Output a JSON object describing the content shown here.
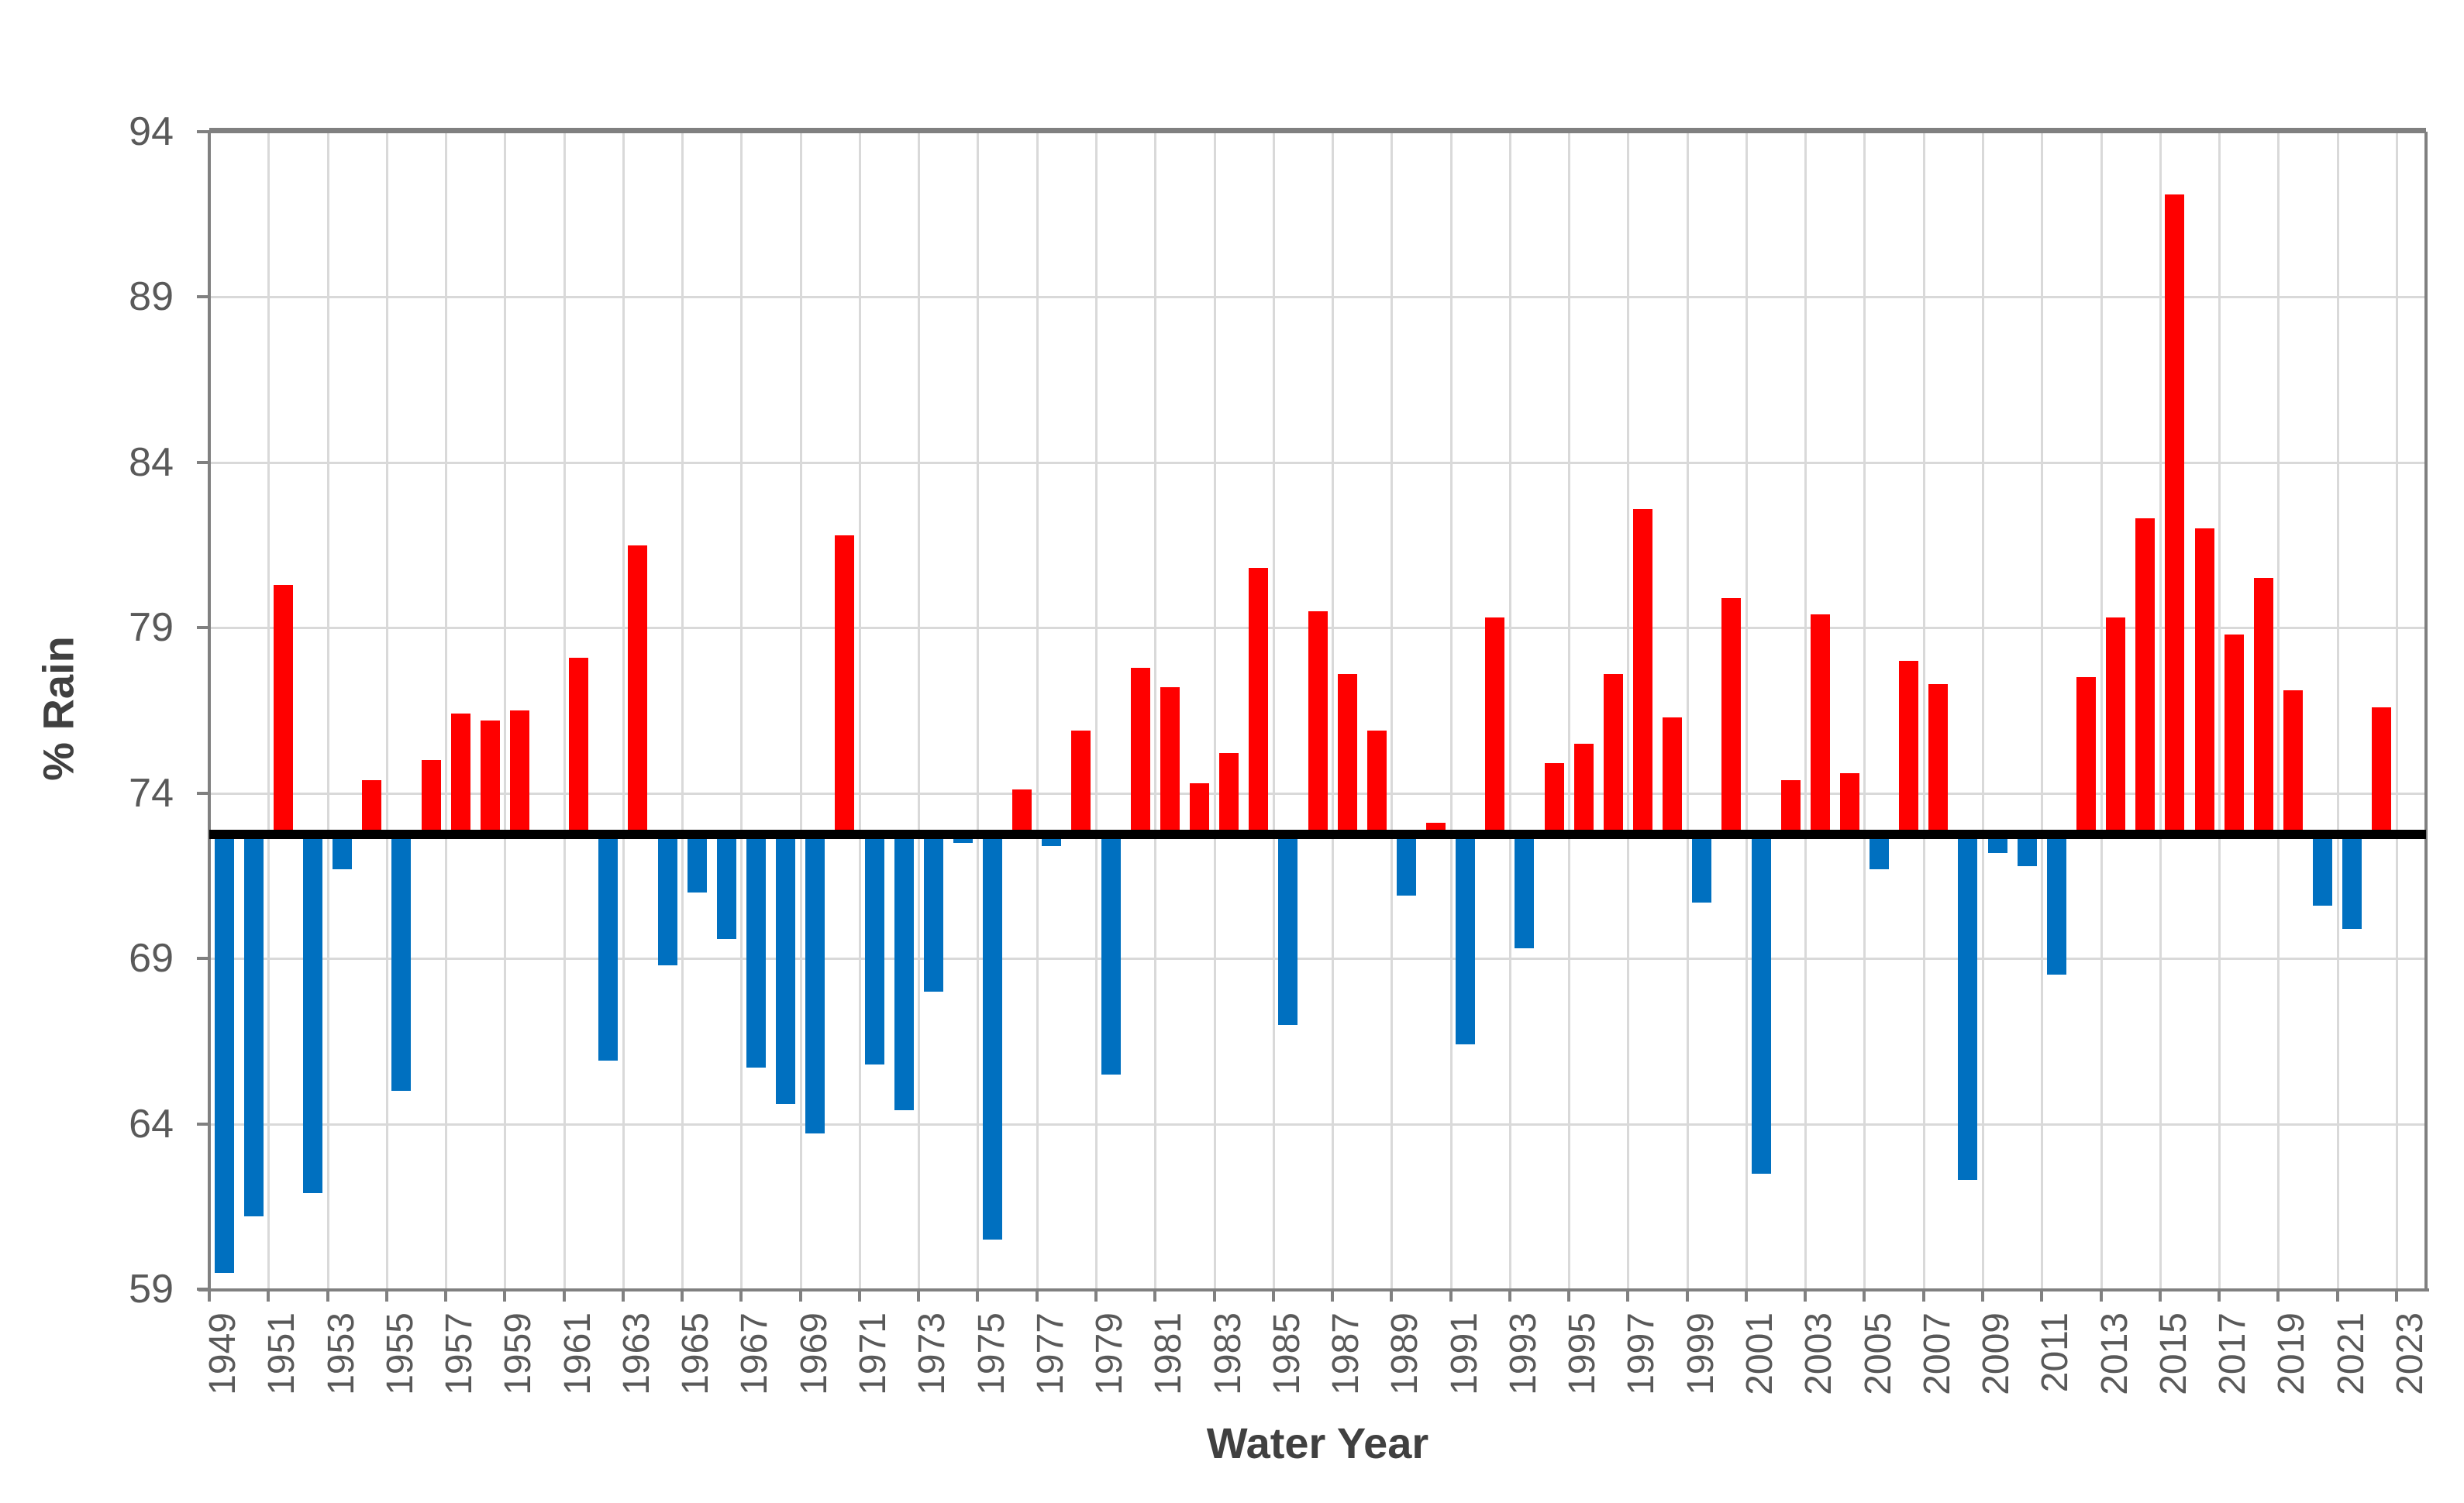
{
  "chart_data": {
    "type": "bar",
    "title": "",
    "xlabel": "Water Year",
    "ylabel": "% Rain",
    "ylim": [
      59,
      94
    ],
    "y_ticks": [
      94,
      89,
      84,
      79,
      74,
      69,
      64,
      59
    ],
    "grid": "on",
    "legend": "none",
    "reference_line": 72.9,
    "x": [
      1949,
      1950,
      1951,
      1952,
      1953,
      1954,
      1955,
      1956,
      1957,
      1958,
      1959,
      1960,
      1961,
      1962,
      1963,
      1964,
      1965,
      1966,
      1967,
      1968,
      1969,
      1970,
      1971,
      1972,
      1973,
      1974,
      1975,
      1976,
      1977,
      1978,
      1979,
      1980,
      1981,
      1982,
      1983,
      1984,
      1985,
      1986,
      1987,
      1988,
      1989,
      1990,
      1991,
      1992,
      1993,
      1994,
      1995,
      1996,
      1997,
      1998,
      1999,
      2000,
      2001,
      2002,
      2003,
      2004,
      2005,
      2006,
      2007,
      2008,
      2009,
      2010,
      2011,
      2012,
      2013,
      2014,
      2015,
      2016,
      2017,
      2018,
      2019,
      2020,
      2021,
      2022,
      2023
    ],
    "values": [
      59.5,
      61.2,
      80.3,
      61.9,
      71.7,
      74.4,
      65.0,
      75.0,
      76.4,
      76.2,
      76.5,
      72.9,
      78.1,
      65.9,
      81.5,
      68.8,
      71.0,
      69.6,
      65.7,
      64.6,
      63.7,
      81.8,
      65.8,
      64.4,
      68.0,
      72.5,
      60.5,
      74.1,
      72.4,
      75.9,
      65.5,
      77.8,
      77.2,
      74.3,
      75.2,
      80.8,
      67.0,
      79.5,
      77.6,
      75.9,
      70.9,
      73.1,
      66.4,
      79.3,
      69.3,
      74.9,
      75.5,
      77.6,
      82.6,
      76.3,
      70.7,
      79.9,
      62.5,
      74.4,
      79.4,
      74.6,
      71.7,
      78.0,
      77.3,
      62.3,
      72.2,
      71.8,
      68.5,
      77.5,
      79.3,
      82.3,
      92.1,
      82.0,
      78.8,
      80.5,
      77.1,
      70.6,
      69.9,
      76.6,
      72.9
    ],
    "x_tick_labels": [
      "1949",
      "1951",
      "1953",
      "1955",
      "1957",
      "1959",
      "1961",
      "1963",
      "1965",
      "1967",
      "1969",
      "1971",
      "1973",
      "1975",
      "1977",
      "1979",
      "1981",
      "1983",
      "1985",
      "1987",
      "1989",
      "1991",
      "1993",
      "1995",
      "1997",
      "1999",
      "2001",
      "2003",
      "2005",
      "2007",
      "2009",
      "2011",
      "2013",
      "2015",
      "2017",
      "2019",
      "2021",
      "2023"
    ],
    "colors": {
      "above_reference": "#FF0000",
      "below_reference": "#0070C0",
      "reference_line": "#000000",
      "gridline": "#D9D9D9",
      "axis_line": "#808080",
      "tick_text": "#595959",
      "title_text": "#404040",
      "background": "#FFFFFF"
    }
  }
}
